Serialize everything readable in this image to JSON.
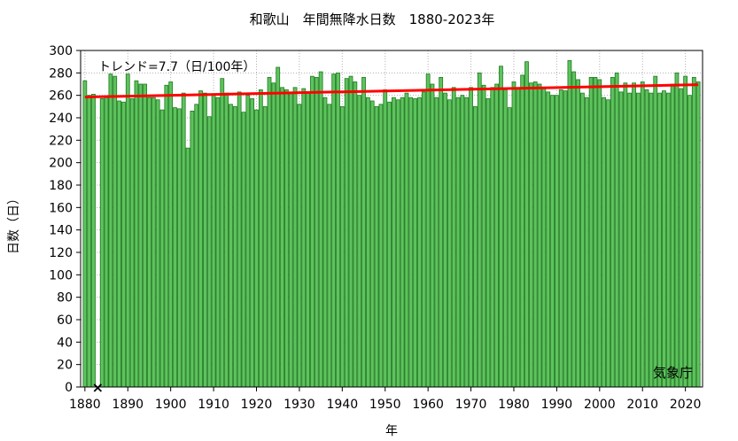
{
  "chart_data": {
    "type": "bar",
    "title": "和歌山　年間無降水日数　1880-2023年",
    "xlabel": "年",
    "ylabel": "日数（日）",
    "annotation": "トレンド=7.7（日/100年）",
    "credit": "気象庁",
    "ylim": [
      0,
      300
    ],
    "xlim": [
      1879,
      2024
    ],
    "x_ticks": [
      1880,
      1890,
      1900,
      1910,
      1920,
      1930,
      1940,
      1950,
      1960,
      1970,
      1980,
      1990,
      2000,
      2010,
      2020
    ],
    "y_ticks": [
      0,
      20,
      40,
      60,
      80,
      100,
      120,
      140,
      160,
      180,
      200,
      220,
      240,
      260,
      280,
      300
    ],
    "grid": true,
    "bar_color": "#5ec35e",
    "bar_edge_color": "#1f7a1f",
    "trend_color": "#ff0000",
    "missing_marker": "×",
    "missing_years": [
      1883
    ],
    "trend": {
      "start_year": 1880,
      "start_value": 258.5,
      "end_year": 2023,
      "end_value": 269.5
    },
    "x": [
      1880,
      1881,
      1882,
      1883,
      1884,
      1885,
      1886,
      1887,
      1888,
      1889,
      1890,
      1891,
      1892,
      1893,
      1894,
      1895,
      1896,
      1897,
      1898,
      1899,
      1900,
      1901,
      1902,
      1903,
      1904,
      1905,
      1906,
      1907,
      1908,
      1909,
      1910,
      1911,
      1912,
      1913,
      1914,
      1915,
      1916,
      1917,
      1918,
      1919,
      1920,
      1921,
      1922,
      1923,
      1924,
      1925,
      1926,
      1927,
      1928,
      1929,
      1930,
      1931,
      1932,
      1933,
      1934,
      1935,
      1936,
      1937,
      1938,
      1939,
      1940,
      1941,
      1942,
      1943,
      1944,
      1945,
      1946,
      1947,
      1948,
      1949,
      1950,
      1951,
      1952,
      1953,
      1954,
      1955,
      1956,
      1957,
      1958,
      1959,
      1960,
      1961,
      1962,
      1963,
      1964,
      1965,
      1966,
      1967,
      1968,
      1969,
      1970,
      1971,
      1972,
      1973,
      1974,
      1975,
      1976,
      1977,
      1978,
      1979,
      1980,
      1981,
      1982,
      1983,
      1984,
      1985,
      1986,
      1987,
      1988,
      1989,
      1990,
      1991,
      1992,
      1993,
      1994,
      1995,
      1996,
      1997,
      1998,
      1999,
      2000,
      2001,
      2002,
      2003,
      2004,
      2005,
      2006,
      2007,
      2008,
      2009,
      2010,
      2011,
      2012,
      2013,
      2014,
      2015,
      2016,
      2017,
      2018,
      2019,
      2020,
      2021,
      2022,
      2023
    ],
    "values": [
      273,
      260,
      261,
      null,
      257,
      258,
      279,
      277,
      255,
      254,
      279,
      257,
      273,
      270,
      270,
      258,
      258,
      256,
      247,
      269,
      272,
      249,
      248,
      262,
      213,
      246,
      252,
      264,
      262,
      241,
      260,
      258,
      275,
      262,
      252,
      250,
      263,
      245,
      260,
      257,
      247,
      265,
      250,
      276,
      271,
      285,
      267,
      265,
      263,
      267,
      252,
      266,
      262,
      277,
      276,
      281,
      258,
      252,
      279,
      280,
      250,
      275,
      277,
      272,
      260,
      276,
      258,
      255,
      250,
      252,
      265,
      254,
      258,
      256,
      258,
      262,
      258,
      257,
      258,
      263,
      279,
      270,
      258,
      276,
      262,
      256,
      267,
      258,
      260,
      258,
      267,
      250,
      280,
      269,
      257,
      267,
      270,
      286,
      265,
      249,
      272,
      266,
      278,
      290,
      271,
      272,
      270,
      267,
      263,
      260,
      260,
      265,
      264,
      291,
      281,
      274,
      262,
      258,
      276,
      276,
      274,
      258,
      256,
      276,
      280,
      263,
      271,
      262,
      271,
      262,
      272,
      265,
      262,
      277,
      262,
      264,
      262,
      270,
      280,
      266,
      277,
      260,
      276,
      272
    ]
  }
}
